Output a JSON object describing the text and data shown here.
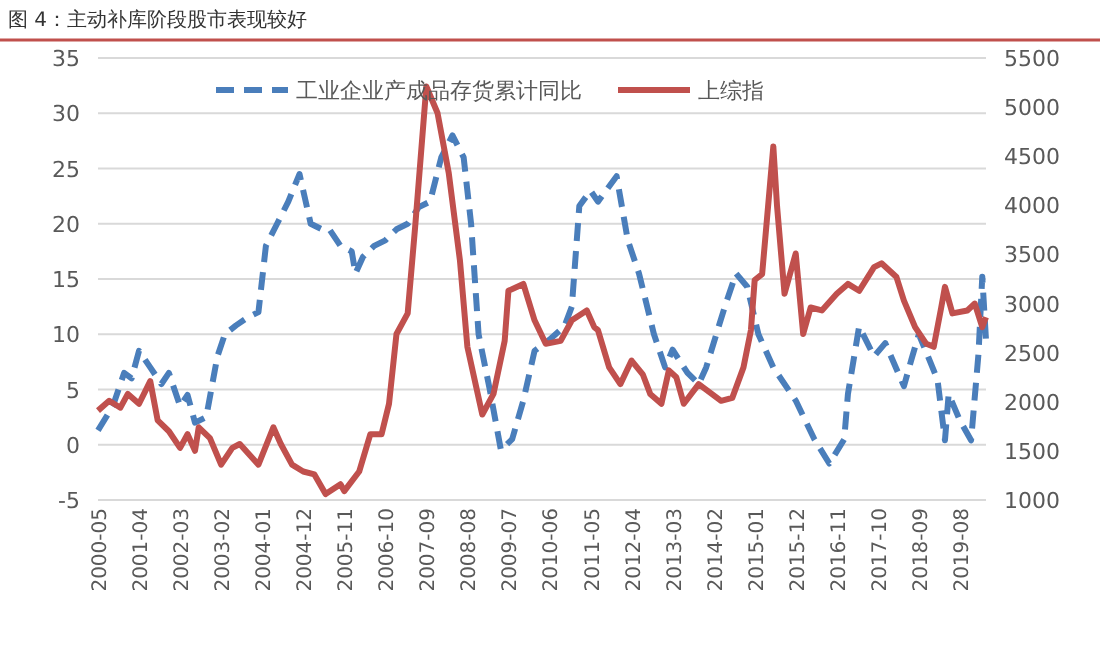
{
  "chart_data": {
    "type": "line",
    "title": "图 4：主动补库阶段股市表现较好",
    "xlim": [
      "2000-05",
      "2020-03"
    ],
    "xticks": [
      "2000-05",
      "2001-04",
      "2002-03",
      "2003-02",
      "2004-01",
      "2004-12",
      "2005-11",
      "2006-10",
      "2007-09",
      "2008-08",
      "2009-07",
      "2010-06",
      "2011-05",
      "2012-04",
      "2013-03",
      "2014-02",
      "2015-01",
      "2015-12",
      "2016-11",
      "2017-10",
      "2018-09",
      "2019-08"
    ],
    "ylim": [
      -5,
      35
    ],
    "yticks": [
      -5,
      0,
      5,
      10,
      15,
      20,
      25,
      30,
      35
    ],
    "y2lim": [
      1000,
      5500
    ],
    "y2ticks": [
      1000,
      1500,
      2000,
      2500,
      3000,
      3500,
      4000,
      4500,
      5000,
      5500
    ],
    "grid": "y",
    "legend": "top",
    "series": [
      {
        "name": "工业企业产成品存货累计同比",
        "color": "#4a7ebb",
        "line_style": "dashed",
        "x": [
          "2000-05",
          "2000-09",
          "2000-12",
          "2001-02",
          "2001-04",
          "2001-07",
          "2001-10",
          "2001-12",
          "2002-03",
          "2002-05",
          "2002-07",
          "2002-10",
          "2003-01",
          "2003-03",
          "2003-06",
          "2003-09",
          "2003-12",
          "2004-02",
          "2004-05",
          "2004-08",
          "2004-11",
          "2005-02",
          "2005-05",
          "2005-07",
          "2005-10",
          "2006-01",
          "2006-02",
          "2006-04",
          "2006-07",
          "2006-10",
          "2007-01",
          "2007-04",
          "2007-07",
          "2007-10",
          "2008-01",
          "2008-04",
          "2008-07",
          "2008-09",
          "2008-11",
          "2009-02",
          "2009-05",
          "2009-08",
          "2009-11",
          "2010-02",
          "2010-06",
          "2010-10",
          "2010-12",
          "2011-02",
          "2011-05",
          "2011-07",
          "2011-12",
          "2012-03",
          "2012-06",
          "2012-10",
          "2013-01",
          "2013-03",
          "2013-07",
          "2013-10",
          "2013-12",
          "2014-05",
          "2014-08",
          "2014-11",
          "2015-02",
          "2015-06",
          "2015-12",
          "2016-05",
          "2016-09",
          "2017-01",
          "2017-02",
          "2017-05",
          "2017-09",
          "2017-12",
          "2018-05",
          "2018-07",
          "2018-09",
          "2019-02",
          "2019-04",
          "2019-05",
          "2019-08",
          "2019-11",
          "2020-01",
          "2020-02",
          "2020-03"
        ],
        "values": [
          1.3,
          3.5,
          6.5,
          6,
          8.5,
          7,
          5.5,
          6.5,
          3.5,
          4.5,
          2,
          2.5,
          8,
          10,
          10.8,
          11.5,
          12,
          18,
          20,
          22,
          24.5,
          20,
          19.5,
          19.5,
          18,
          17.5,
          15.5,
          17,
          18,
          18.5,
          19.5,
          20,
          21.5,
          22,
          26,
          28,
          26,
          20,
          10,
          5,
          -0.5,
          0.5,
          4,
          8.5,
          9.5,
          10.7,
          12.5,
          21.6,
          23,
          22,
          24.3,
          18.5,
          15.5,
          10,
          7,
          8.6,
          6.5,
          5.5,
          7,
          12.5,
          15.5,
          14.3,
          10,
          7,
          4,
          0.5,
          -1.7,
          0.5,
          4.6,
          10.7,
          8,
          9.2,
          5.3,
          7.7,
          10,
          5.9,
          0.4,
          4.6,
          2.2,
          0.4,
          8.3,
          15.2,
          9.5
        ]
      },
      {
        "name": "上综指",
        "color": "#c0504d",
        "axis": "y2",
        "line_style": "solid",
        "x": [
          "2000-05",
          "2000-08",
          "2000-11",
          "2001-01",
          "2001-04",
          "2001-07",
          "2001-09",
          "2001-12",
          "2002-03",
          "2002-05",
          "2002-07",
          "2002-08",
          "2002-11",
          "2003-02",
          "2003-05",
          "2003-07",
          "2003-12",
          "2004-04",
          "2004-06",
          "2004-09",
          "2004-12",
          "2005-03",
          "2005-06",
          "2005-10",
          "2005-11",
          "2006-03",
          "2006-06",
          "2006-09",
          "2006-11",
          "2007-01",
          "2007-04",
          "2007-06",
          "2007-09",
          "2007-12",
          "2008-03",
          "2008-06",
          "2008-08",
          "2008-12",
          "2009-03",
          "2009-06",
          "2009-07",
          "2009-11",
          "2010-02",
          "2010-05",
          "2010-09",
          "2010-12",
          "2011-04",
          "2011-06",
          "2011-07",
          "2011-10",
          "2012-01",
          "2012-04",
          "2012-07",
          "2012-09",
          "2012-12",
          "2013-02",
          "2013-04",
          "2013-06",
          "2013-10",
          "2014-04",
          "2014-07",
          "2014-10",
          "2014-12",
          "2015-01",
          "2015-03",
          "2015-06",
          "2015-07",
          "2015-09",
          "2015-12",
          "2016-02",
          "2016-04",
          "2016-07",
          "2016-11",
          "2017-02",
          "2017-05",
          "2017-09",
          "2017-11",
          "2018-03",
          "2018-05",
          "2018-08",
          "2018-11",
          "2019-01",
          "2019-03",
          "2019-04",
          "2019-06",
          "2019-10",
          "2019-12",
          "2020-02",
          "2020-03"
        ],
        "values": [
          1910,
          2010,
          1940,
          2080,
          1980,
          2210,
          1810,
          1700,
          1530,
          1670,
          1500,
          1740,
          1630,
          1360,
          1530,
          1570,
          1360,
          1740,
          1570,
          1360,
          1290,
          1260,
          1060,
          1160,
          1090,
          1290,
          1670,
          1670,
          1980,
          2690,
          2900,
          3780,
          5210,
          4940,
          4330,
          3440,
          2560,
          1870,
          2080,
          2620,
          3130,
          3200,
          2830,
          2590,
          2620,
          2830,
          2930,
          2760,
          2730,
          2350,
          2180,
          2420,
          2280,
          2080,
          1980,
          2320,
          2250,
          1980,
          2180,
          2010,
          2040,
          2350,
          2730,
          3240,
          3300,
          4600,
          3990,
          3100,
          3510,
          2690,
          2960,
          2930,
          3100,
          3200,
          3130,
          3370,
          3410,
          3270,
          3030,
          2760,
          2590,
          2560,
          2960,
          3170,
          2900,
          2930,
          3000,
          2760,
          2860
        ]
      }
    ]
  }
}
